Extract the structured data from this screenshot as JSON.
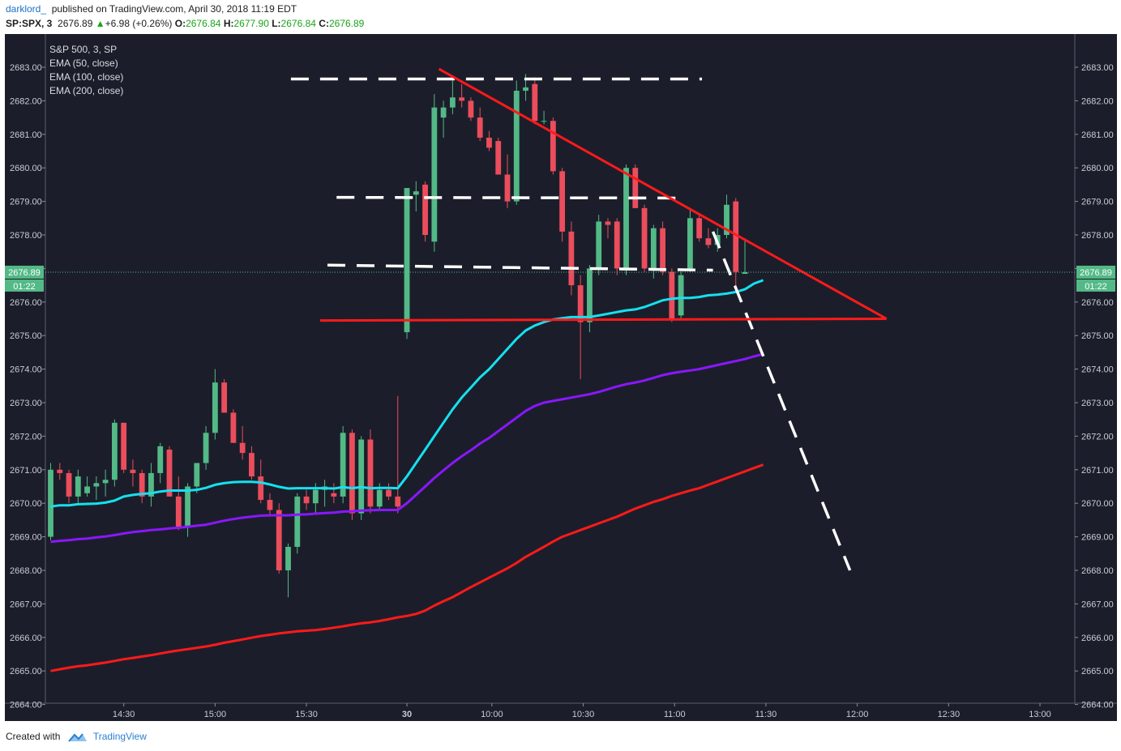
{
  "header": {
    "author": "darklord_",
    "published": "published on TradingView.com, April 30, 2018 11:19 EDT",
    "symbol": "SP:SPX, 3",
    "last": "2676.89",
    "change_arrow": "▲",
    "change": "+6.98 (+0.26%)",
    "o_label": "O:",
    "o": "2676.84",
    "h_label": "H:",
    "h": "2677.90",
    "l_label": "L:",
    "l": "2676.84",
    "c_label": "C:",
    "c": "2676.89"
  },
  "legend": {
    "title": "S&P 500, 3, SP",
    "lines": [
      "EMA (50, close)",
      "EMA (100, close)",
      "EMA (200, close)"
    ]
  },
  "footer": {
    "created_with": "Created with",
    "brand": "TradingView"
  },
  "colors": {
    "background": "#1b1e2a",
    "up": "#53b987",
    "down": "#eb4d5c",
    "ema50": "#16e0f0",
    "ema100": "#8a17ff",
    "ema200": "#ff1a1a",
    "trend": "#ff1a1a",
    "dash": "#ffffff",
    "price_badge": "#53b987"
  },
  "chart_data": {
    "type": "candlestick",
    "interval_minutes": 3,
    "ylim": [
      2664.0,
      2683.4
    ],
    "y_ticks": [
      "2683.00",
      "2682.00",
      "2681.00",
      "2680.00",
      "2679.00",
      "2678.00",
      "2677.00",
      "2676.00",
      "2675.00",
      "2674.00",
      "2673.00",
      "2672.00",
      "2671.00",
      "2670.00",
      "2669.00",
      "2668.00",
      "2667.00",
      "2666.00",
      "2665.00",
      "2664.00"
    ],
    "x_ticks": [
      "14:30",
      "15:00",
      "15:30",
      "30",
      "10:00",
      "10:30",
      "11:00",
      "11:30",
      "12:00",
      "12:30",
      "13:00"
    ],
    "last_price": "2676.89",
    "countdown": "01:22",
    "candles": [
      {
        "t": "Apr27 14:06",
        "o": 2669.0,
        "h": 2671.2,
        "l": 2668.9,
        "c": 2671.0
      },
      {
        "t": "Apr27 14:09",
        "o": 2671.0,
        "h": 2671.2,
        "l": 2670.7,
        "c": 2670.9
      },
      {
        "t": "Apr27 14:12",
        "o": 2670.9,
        "h": 2671.0,
        "l": 2670.0,
        "c": 2670.2
      },
      {
        "t": "Apr27 14:15",
        "o": 2670.2,
        "h": 2671.0,
        "l": 2670.0,
        "c": 2670.8
      },
      {
        "t": "Apr27 14:18",
        "o": 2670.3,
        "h": 2670.8,
        "l": 2670.2,
        "c": 2670.5
      },
      {
        "t": "Apr27 14:21",
        "o": 2670.5,
        "h": 2670.8,
        "l": 2670.1,
        "c": 2670.6
      },
      {
        "t": "Apr27 14:24",
        "o": 2670.6,
        "h": 2671.0,
        "l": 2670.2,
        "c": 2670.7
      },
      {
        "t": "Apr27 14:27",
        "o": 2670.7,
        "h": 2672.5,
        "l": 2670.5,
        "c": 2672.4
      },
      {
        "t": "Apr27 14:30",
        "o": 2672.4,
        "h": 2672.4,
        "l": 2670.9,
        "c": 2671.0
      },
      {
        "t": "Apr27 14:33",
        "o": 2671.0,
        "h": 2671.3,
        "l": 2670.5,
        "c": 2670.9
      },
      {
        "t": "Apr27 14:36",
        "o": 2670.9,
        "h": 2671.0,
        "l": 2670.0,
        "c": 2670.2
      },
      {
        "t": "Apr27 14:39",
        "o": 2670.2,
        "h": 2671.2,
        "l": 2669.9,
        "c": 2670.9
      },
      {
        "t": "Apr27 14:42",
        "o": 2670.9,
        "h": 2671.8,
        "l": 2670.6,
        "c": 2671.7
      },
      {
        "t": "Apr27 14:45",
        "o": 2671.6,
        "h": 2671.7,
        "l": 2670.2,
        "c": 2670.2
      },
      {
        "t": "Apr27 14:48",
        "o": 2670.2,
        "h": 2670.8,
        "l": 2669.2,
        "c": 2669.3
      },
      {
        "t": "Apr27 14:51",
        "o": 2669.3,
        "h": 2670.6,
        "l": 2669.0,
        "c": 2670.5
      },
      {
        "t": "Apr27 14:54",
        "o": 2670.5,
        "h": 2671.2,
        "l": 2670.3,
        "c": 2671.2
      },
      {
        "t": "Apr27 14:57",
        "o": 2671.2,
        "h": 2672.3,
        "l": 2671.0,
        "c": 2672.1
      },
      {
        "t": "Apr27 15:00",
        "o": 2672.1,
        "h": 2674.0,
        "l": 2671.9,
        "c": 2673.6
      },
      {
        "t": "Apr27 15:03",
        "o": 2673.6,
        "h": 2673.7,
        "l": 2672.7,
        "c": 2672.7
      },
      {
        "t": "Apr27 15:06",
        "o": 2672.7,
        "h": 2672.8,
        "l": 2671.8,
        "c": 2671.8
      },
      {
        "t": "Apr27 15:09",
        "o": 2671.8,
        "h": 2672.3,
        "l": 2671.3,
        "c": 2671.5
      },
      {
        "t": "Apr27 15:12",
        "o": 2671.5,
        "h": 2671.7,
        "l": 2670.7,
        "c": 2670.8
      },
      {
        "t": "Apr27 15:15",
        "o": 2670.8,
        "h": 2671.3,
        "l": 2670.0,
        "c": 2670.1
      },
      {
        "t": "Apr27 15:18",
        "o": 2670.1,
        "h": 2670.3,
        "l": 2669.6,
        "c": 2669.8
      },
      {
        "t": "Apr27 15:21",
        "o": 2669.8,
        "h": 2670.0,
        "l": 2667.9,
        "c": 2668.0
      },
      {
        "t": "Apr27 15:24",
        "o": 2668.0,
        "h": 2668.8,
        "l": 2667.2,
        "c": 2668.7
      },
      {
        "t": "Apr27 15:27",
        "o": 2668.7,
        "h": 2670.3,
        "l": 2668.5,
        "c": 2670.2
      },
      {
        "t": "Apr27 15:30",
        "o": 2670.2,
        "h": 2670.4,
        "l": 2669.8,
        "c": 2670.0
      },
      {
        "t": "Apr27 15:33",
        "o": 2670.0,
        "h": 2670.6,
        "l": 2669.7,
        "c": 2670.4
      },
      {
        "t": "Apr27 15:36",
        "o": 2670.4,
        "h": 2670.7,
        "l": 2669.9,
        "c": 2670.5
      },
      {
        "t": "Apr27 15:39",
        "o": 2670.3,
        "h": 2670.6,
        "l": 2670.0,
        "c": 2670.2
      },
      {
        "t": "Apr27 15:42",
        "o": 2670.2,
        "h": 2672.3,
        "l": 2670.0,
        "c": 2672.1
      },
      {
        "t": "Apr27 15:45",
        "o": 2672.1,
        "h": 2672.2,
        "l": 2669.5,
        "c": 2669.7
      },
      {
        "t": "Apr27 15:48",
        "o": 2669.7,
        "h": 2672.0,
        "l": 2669.5,
        "c": 2671.9
      },
      {
        "t": "Apr27 15:51",
        "o": 2671.9,
        "h": 2672.2,
        "l": 2669.7,
        "c": 2669.9
      },
      {
        "t": "Apr27 15:54",
        "o": 2669.9,
        "h": 2670.6,
        "l": 2669.8,
        "c": 2670.4
      },
      {
        "t": "Apr27 15:57",
        "o": 2670.4,
        "h": 2670.6,
        "l": 2670.1,
        "c": 2670.2
      },
      {
        "t": "Apr27 16:00",
        "o": 2670.2,
        "h": 2673.2,
        "l": 2669.7,
        "c": 2669.9
      },
      {
        "t": "Apr30 09:33",
        "o": 2675.1,
        "h": 2679.4,
        "l": 2674.9,
        "c": 2679.4
      },
      {
        "t": "Apr30 09:36",
        "o": 2679.2,
        "h": 2679.6,
        "l": 2678.7,
        "c": 2679.3
      },
      {
        "t": "Apr30 09:39",
        "o": 2679.5,
        "h": 2679.6,
        "l": 2677.8,
        "c": 2678.0
      },
      {
        "t": "Apr30 09:42",
        "o": 2677.8,
        "h": 2682.2,
        "l": 2677.5,
        "c": 2681.8
      },
      {
        "t": "Apr30 09:45",
        "o": 2681.5,
        "h": 2682.0,
        "l": 2680.9,
        "c": 2681.8
      },
      {
        "t": "Apr30 09:48",
        "o": 2681.8,
        "h": 2682.6,
        "l": 2681.6,
        "c": 2682.1
      },
      {
        "t": "Apr30 09:51",
        "o": 2682.1,
        "h": 2682.5,
        "l": 2681.8,
        "c": 2682.0
      },
      {
        "t": "Apr30 09:54",
        "o": 2682.0,
        "h": 2682.1,
        "l": 2681.4,
        "c": 2681.5
      },
      {
        "t": "Apr30 09:57",
        "o": 2681.5,
        "h": 2681.8,
        "l": 2680.8,
        "c": 2680.9
      },
      {
        "t": "Apr30 10:00",
        "o": 2680.9,
        "h": 2681.1,
        "l": 2680.5,
        "c": 2680.6
      },
      {
        "t": "Apr30 10:03",
        "o": 2680.8,
        "h": 2680.9,
        "l": 2679.8,
        "c": 2679.8
      },
      {
        "t": "Apr30 10:06",
        "o": 2679.8,
        "h": 2680.4,
        "l": 2678.8,
        "c": 2679.0
      },
      {
        "t": "Apr30 10:09",
        "o": 2679.0,
        "h": 2682.6,
        "l": 2678.9,
        "c": 2682.3
      },
      {
        "t": "Apr30 10:12",
        "o": 2682.3,
        "h": 2682.8,
        "l": 2682.0,
        "c": 2682.4
      },
      {
        "t": "Apr30 10:15",
        "o": 2682.5,
        "h": 2682.7,
        "l": 2681.3,
        "c": 2681.4
      },
      {
        "t": "Apr30 10:18",
        "o": 2681.4,
        "h": 2681.7,
        "l": 2681.3,
        "c": 2681.4
      },
      {
        "t": "Apr30 10:21",
        "o": 2681.4,
        "h": 2681.5,
        "l": 2679.8,
        "c": 2679.9
      },
      {
        "t": "Apr30 10:24",
        "o": 2679.9,
        "h": 2680.0,
        "l": 2677.8,
        "c": 2678.1
      },
      {
        "t": "Apr30 10:27",
        "o": 2678.1,
        "h": 2678.4,
        "l": 2676.2,
        "c": 2676.5
      },
      {
        "t": "Apr30 10:30",
        "o": 2676.5,
        "h": 2676.8,
        "l": 2673.7,
        "c": 2675.4
      },
      {
        "t": "Apr30 10:33",
        "o": 2675.4,
        "h": 2677.1,
        "l": 2675.1,
        "c": 2677.0
      },
      {
        "t": "Apr30 10:36",
        "o": 2677.0,
        "h": 2678.6,
        "l": 2676.8,
        "c": 2678.4
      },
      {
        "t": "Apr30 10:39",
        "o": 2678.4,
        "h": 2678.5,
        "l": 2677.9,
        "c": 2678.3
      },
      {
        "t": "Apr30 10:42",
        "o": 2678.4,
        "h": 2678.5,
        "l": 2676.8,
        "c": 2677.0
      },
      {
        "t": "Apr30 10:45",
        "o": 2677.0,
        "h": 2680.1,
        "l": 2676.8,
        "c": 2680.0
      },
      {
        "t": "Apr30 10:48",
        "o": 2680.0,
        "h": 2680.1,
        "l": 2678.8,
        "c": 2678.8
      },
      {
        "t": "Apr30 10:51",
        "o": 2678.8,
        "h": 2678.9,
        "l": 2676.9,
        "c": 2677.0
      },
      {
        "t": "Apr30 10:54",
        "o": 2677.0,
        "h": 2678.3,
        "l": 2676.7,
        "c": 2678.2
      },
      {
        "t": "Apr30 10:57",
        "o": 2678.2,
        "h": 2678.4,
        "l": 2676.8,
        "c": 2676.9
      },
      {
        "t": "Apr30 11:00",
        "o": 2676.9,
        "h": 2677.0,
        "l": 2675.4,
        "c": 2675.5
      },
      {
        "t": "Apr30 11:03",
        "o": 2675.6,
        "h": 2676.9,
        "l": 2675.5,
        "c": 2676.8
      },
      {
        "t": "Apr30 11:06",
        "o": 2677.0,
        "h": 2678.8,
        "l": 2676.9,
        "c": 2678.5
      },
      {
        "t": "Apr30 11:09",
        "o": 2678.5,
        "h": 2678.6,
        "l": 2677.8,
        "c": 2677.9
      },
      {
        "t": "Apr30 11:12",
        "o": 2677.9,
        "h": 2678.2,
        "l": 2677.6,
        "c": 2677.7
      },
      {
        "t": "Apr30 11:15",
        "o": 2677.7,
        "h": 2678.2,
        "l": 2677.5,
        "c": 2678.0
      },
      {
        "t": "Apr30 11:18",
        "o": 2678.0,
        "h": 2679.2,
        "l": 2677.9,
        "c": 2678.9
      },
      {
        "t": "Apr30 11:21",
        "o": 2679.0,
        "h": 2679.1,
        "l": 2676.4,
        "c": 2676.9
      },
      {
        "t": "Apr30 11:24",
        "o": 2676.84,
        "h": 2677.9,
        "l": 2676.84,
        "c": 2676.89
      }
    ],
    "ema50": [
      2669.9,
      2669.94,
      2669.94,
      2669.97,
      2669.98,
      2669.99,
      2670.02,
      2670.08,
      2670.2,
      2670.25,
      2670.28,
      2670.3,
      2670.35,
      2670.38,
      2670.38,
      2670.38,
      2670.4,
      2670.46,
      2670.55,
      2670.6,
      2670.63,
      2670.64,
      2670.64,
      2670.62,
      2670.56,
      2670.49,
      2670.44,
      2670.45,
      2670.45,
      2670.45,
      2670.45,
      2670.44,
      2670.48,
      2670.45,
      2670.48,
      2670.45,
      2670.46,
      2670.46,
      2670.45,
      2670.8,
      2671.2,
      2671.6,
      2672.0,
      2672.4,
      2672.8,
      2673.15,
      2673.45,
      2673.75,
      2674.0,
      2674.3,
      2674.6,
      2674.9,
      2675.15,
      2675.3,
      2675.4,
      2675.48,
      2675.52,
      2675.55,
      2675.55,
      2675.55,
      2675.6,
      2675.65,
      2675.7,
      2675.75,
      2675.78,
      2675.85,
      2675.95,
      2676.05,
      2676.1,
      2676.12,
      2676.12,
      2676.15,
      2676.2,
      2676.22,
      2676.25,
      2676.3,
      2676.38,
      2676.55,
      2676.65
    ],
    "ema100": [
      2668.85,
      2668.88,
      2668.9,
      2668.93,
      2668.95,
      2668.98,
      2669.01,
      2669.05,
      2669.1,
      2669.14,
      2669.17,
      2669.2,
      2669.22,
      2669.25,
      2669.27,
      2669.3,
      2669.33,
      2669.36,
      2669.42,
      2669.48,
      2669.53,
      2669.57,
      2669.6,
      2669.63,
      2669.64,
      2669.64,
      2669.64,
      2669.66,
      2669.67,
      2669.69,
      2669.71,
      2669.72,
      2669.75,
      2669.76,
      2669.78,
      2669.79,
      2669.8,
      2669.8,
      2669.8,
      2670.0,
      2670.25,
      2670.5,
      2670.75,
      2670.98,
      2671.2,
      2671.4,
      2671.58,
      2671.78,
      2671.95,
      2672.15,
      2672.35,
      2672.55,
      2672.75,
      2672.9,
      2673.0,
      2673.05,
      2673.1,
      2673.15,
      2673.2,
      2673.25,
      2673.32,
      2673.4,
      2673.48,
      2673.55,
      2673.6,
      2673.66,
      2673.74,
      2673.82,
      2673.88,
      2673.92,
      2673.96,
      2674.0,
      2674.06,
      2674.12,
      2674.18,
      2674.24,
      2674.3,
      2674.38,
      2674.45
    ],
    "ema200": [
      2665.0,
      2665.05,
      2665.1,
      2665.14,
      2665.17,
      2665.21,
      2665.25,
      2665.3,
      2665.35,
      2665.39,
      2665.43,
      2665.47,
      2665.52,
      2665.57,
      2665.61,
      2665.65,
      2665.69,
      2665.73,
      2665.78,
      2665.84,
      2665.89,
      2665.94,
      2665.99,
      2666.04,
      2666.08,
      2666.12,
      2666.15,
      2666.18,
      2666.2,
      2666.22,
      2666.25,
      2666.29,
      2666.33,
      2666.38,
      2666.42,
      2666.45,
      2666.49,
      2666.54,
      2666.6,
      2666.64,
      2666.7,
      2666.8,
      2666.95,
      2667.08,
      2667.2,
      2667.35,
      2667.5,
      2667.64,
      2667.78,
      2667.92,
      2668.06,
      2668.22,
      2668.4,
      2668.55,
      2668.7,
      2668.86,
      2669.0,
      2669.1,
      2669.2,
      2669.3,
      2669.4,
      2669.5,
      2669.6,
      2669.72,
      2669.84,
      2669.94,
      2670.04,
      2670.12,
      2670.22,
      2670.3,
      2670.38,
      2670.45,
      2670.55,
      2670.65,
      2670.75,
      2670.85,
      2670.95,
      2671.05,
      2671.15
    ]
  }
}
